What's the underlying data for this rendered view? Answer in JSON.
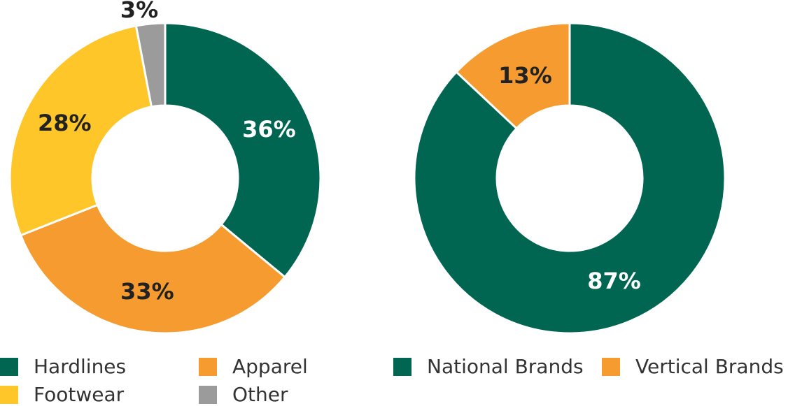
{
  "chart_data": [
    {
      "type": "pie",
      "categories": [
        "Hardlines",
        "Apparel",
        "Footwear",
        "Other"
      ],
      "values": [
        36,
        33,
        28,
        3
      ],
      "labels": [
        "36%",
        "33%",
        "28%",
        "3%"
      ],
      "colors": [
        "#006652",
        "#f59b2f",
        "#ffc629",
        "#9b9b9b"
      ],
      "label_colors": [
        "#ffffff",
        "#222222",
        "#222222",
        "#222222"
      ],
      "donut": true,
      "legend": "bottom"
    },
    {
      "type": "pie",
      "categories": [
        "National Brands",
        "Vertical Brands"
      ],
      "values": [
        87,
        13
      ],
      "labels": [
        "87%",
        "13%"
      ],
      "colors": [
        "#006652",
        "#f59b2f"
      ],
      "label_colors": [
        "#ffffff",
        "#222222"
      ],
      "donut": true,
      "legend": "bottom"
    }
  ]
}
